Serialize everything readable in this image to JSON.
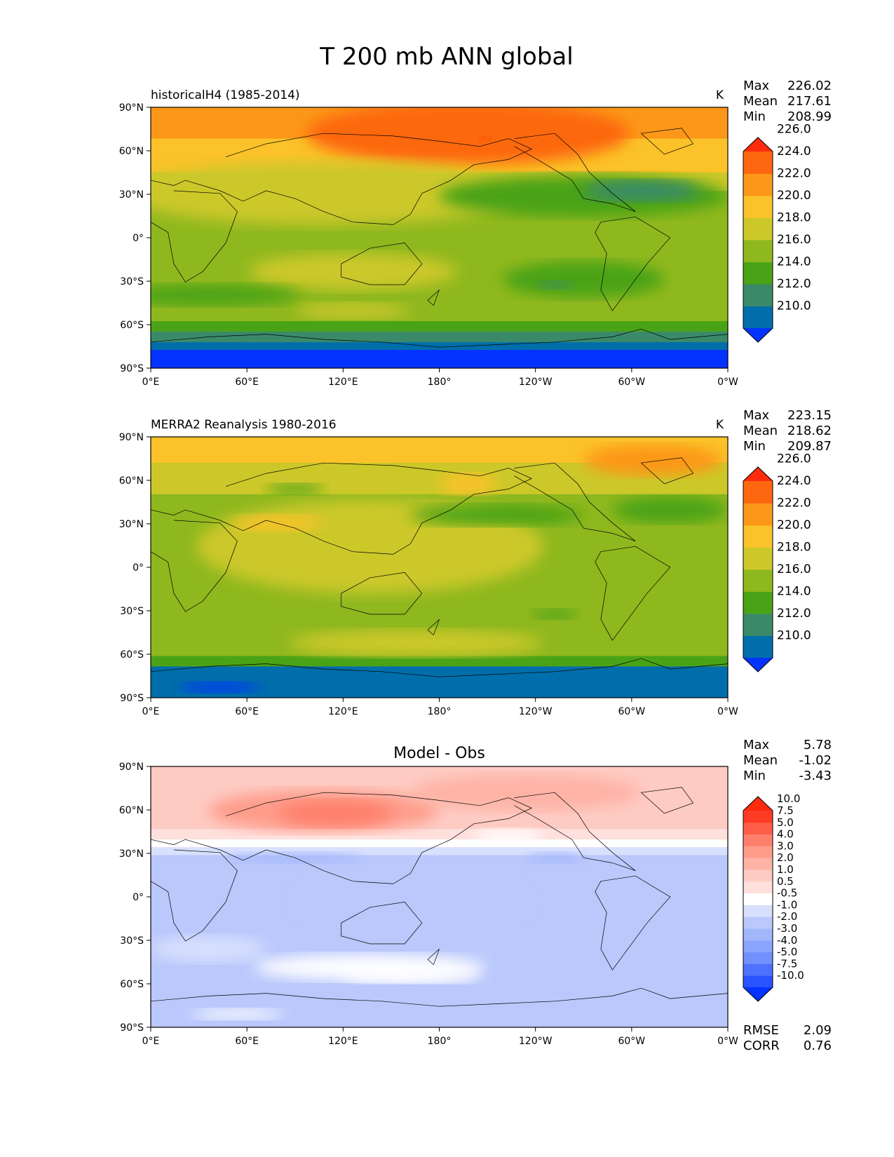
{
  "figure_title": "T 200 mb ANN global",
  "chart_data": [
    {
      "type": "heatmap",
      "kind": "map",
      "title": "historicalH4 (1985-2014)",
      "units": "K",
      "stats": [
        {
          "label": "Max",
          "value": "226.02"
        },
        {
          "label": "Mean",
          "value": "217.61"
        },
        {
          "label": "Min",
          "value": "208.99"
        }
      ],
      "colorbar": {
        "labels": [
          "210.0",
          "212.0",
          "214.0",
          "216.0",
          "218.0",
          "220.0",
          "222.0",
          "224.0",
          "226.0"
        ],
        "colors": [
          "#0433FF",
          "#006EAA",
          "#3A8A6A",
          "#4AA316",
          "#8FB81E",
          "#CCC829",
          "#FBC229",
          "#FC9719",
          "#FC6710",
          "#FE2B0C"
        ]
      },
      "lon_labels": [
        "0°E",
        "60°E",
        "120°E",
        "180°",
        "120°W",
        "60°W",
        "0°W"
      ],
      "lat_labels": [
        "90°N",
        "60°N",
        "30°N",
        "0°",
        "30°S",
        "60°S",
        "90°S"
      ],
      "lat_values": [
        90,
        60,
        30,
        0,
        -30,
        -60,
        -90
      ],
      "lon_range": [
        0,
        360
      ],
      "lat_range": [
        -90,
        90
      ]
    },
    {
      "type": "heatmap",
      "kind": "map",
      "title": "MERRA2 Reanalysis 1980-2016",
      "units": "K",
      "stats": [
        {
          "label": "Max",
          "value": "223.15"
        },
        {
          "label": "Mean",
          "value": "218.62"
        },
        {
          "label": "Min",
          "value": "209.87"
        }
      ],
      "colorbar": {
        "labels": [
          "210.0",
          "212.0",
          "214.0",
          "216.0",
          "218.0",
          "220.0",
          "222.0",
          "224.0",
          "226.0"
        ],
        "colors": [
          "#0433FF",
          "#006EAA",
          "#3A8A6A",
          "#4AA316",
          "#8FB81E",
          "#CCC829",
          "#FBC229",
          "#FC9719",
          "#FC6710",
          "#FE2B0C"
        ]
      },
      "lon_labels": [
        "0°E",
        "60°E",
        "120°E",
        "180°",
        "120°W",
        "60°W",
        "0°W"
      ],
      "lat_labels": [
        "90°N",
        "60°N",
        "30°N",
        "0°",
        "30°S",
        "60°S",
        "90°S"
      ],
      "lat_values": [
        90,
        60,
        30,
        0,
        -30,
        -60,
        -90
      ],
      "lon_range": [
        0,
        360
      ],
      "lat_range": [
        -90,
        90
      ]
    },
    {
      "type": "heatmap",
      "kind": "map",
      "title": "Model - Obs",
      "units": "",
      "stats": [
        {
          "label": "Max",
          "value": "5.78"
        },
        {
          "label": "Mean",
          "value": "-1.02"
        },
        {
          "label": "Min",
          "value": "-3.43"
        }
      ],
      "extra_stats": [
        {
          "label": "RMSE",
          "value": "2.09"
        },
        {
          "label": "CORR",
          "value": "0.76"
        }
      ],
      "colorbar": {
        "labels": [
          "-10.0",
          "-7.5",
          "-5.0",
          "-4.0",
          "-3.0",
          "-2.0",
          "-1.0",
          "-0.5",
          "0.5",
          "1.0",
          "2.0",
          "3.0",
          "4.0",
          "5.0",
          "7.5",
          "10.0"
        ],
        "colors": [
          "#0433FF",
          "#2953FE",
          "#4E72FE",
          "#7091FE",
          "#8AA5FD",
          "#A2B6FB",
          "#BAC8FC",
          "#D8E0FE",
          "#FFFFFF",
          "#FFE0DC",
          "#FECBC3",
          "#FEB3A5",
          "#FE9C8A",
          "#FE806C",
          "#FE5E48",
          "#FE3B24",
          "#FE2B0C"
        ]
      },
      "lon_labels": [
        "0°E",
        "60°E",
        "120°E",
        "180°",
        "120°W",
        "60°W",
        "0°W"
      ],
      "lat_labels": [
        "90°N",
        "60°N",
        "30°N",
        "0°",
        "30°S",
        "60°S",
        "90°S"
      ],
      "lat_values": [
        90,
        60,
        30,
        0,
        -30,
        -60,
        -90
      ],
      "lon_range": [
        0,
        360
      ],
      "lat_range": [
        -90,
        90
      ]
    }
  ]
}
